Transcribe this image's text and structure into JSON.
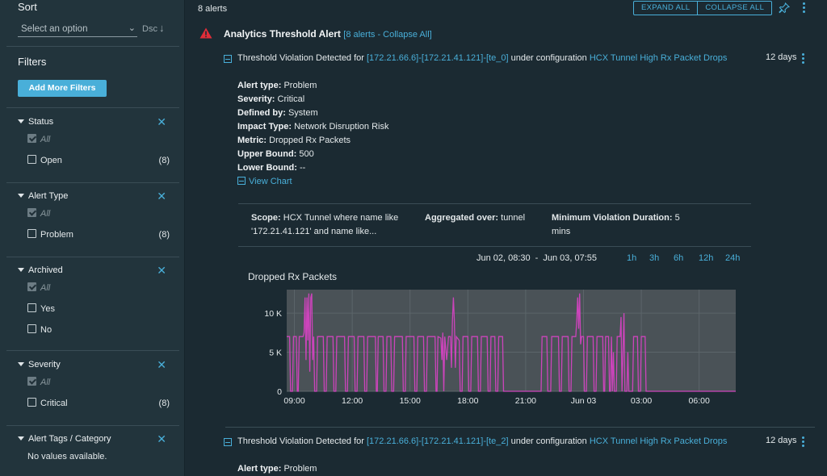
{
  "sidebar": {
    "sort": {
      "title": "Sort",
      "placeholder": "Select an option",
      "direction": "Dsc"
    },
    "filters_title": "Filters",
    "add_filters": "Add More Filters",
    "groups": [
      {
        "label": "Status",
        "options": [
          {
            "label": "All",
            "checked": true
          },
          {
            "label": "Open",
            "count": "(8)"
          }
        ]
      },
      {
        "label": "Alert Type",
        "options": [
          {
            "label": "All",
            "checked": true
          },
          {
            "label": "Problem",
            "count": "(8)"
          }
        ]
      },
      {
        "label": "Archived",
        "options": [
          {
            "label": "All",
            "checked": true
          },
          {
            "label": "Yes",
            "count": ""
          },
          {
            "label": "No",
            "count": ""
          }
        ]
      },
      {
        "label": "Severity",
        "options": [
          {
            "label": "All",
            "checked": true
          },
          {
            "label": "Critical",
            "count": "(8)"
          }
        ]
      },
      {
        "label": "Alert Tags / Category",
        "empty": "No values available."
      }
    ]
  },
  "main": {
    "alerts_count": "8 alerts",
    "expand_all": "EXPAND ALL",
    "collapse_all": "COLLAPSE ALL",
    "group_title": "Analytics Threshold Alert",
    "group_link": "[8 alerts - Collapse All]",
    "alert1": {
      "prefix": "Threshold Violation Detected for ",
      "entity": "[172.21.66.6]-[172.21.41.121]-[te_0]",
      "middle": " under configuration ",
      "config": "HCX Tunnel High Rx Packet Drops",
      "age": "12 days",
      "details": [
        {
          "k": "Alert type:",
          "v": " Problem"
        },
        {
          "k": "Severity:",
          "v": " Critical"
        },
        {
          "k": "Defined by:",
          "v": " System"
        },
        {
          "k": "Impact Type:",
          "v": " Network Disruption Risk"
        },
        {
          "k": "Metric:",
          "v": " Dropped Rx Packets"
        },
        {
          "k": "Upper Bound:",
          "v": " 500"
        },
        {
          "k": "Lower Bound:",
          "v": " --"
        }
      ],
      "view_chart": "View Chart",
      "scope_label": "Scope:",
      "scope_value": " HCX Tunnel where name like '172.21.41.121' and name like...",
      "agg_label": "Aggregated over:",
      "agg_value": " tunnel",
      "min_label": "Minimum Violation Duration:",
      "min_value": " 5 mins",
      "range_start": "Jun 02, 08:30",
      "range_sep": "-",
      "range_end": "Jun 03, 07:55",
      "ranges": [
        "1h",
        "3h",
        "6h",
        "12h",
        "24h"
      ]
    },
    "alert2": {
      "prefix": "Threshold Violation Detected for ",
      "entity": "[172.21.66.6]-[172.21.41.121]-[te_2]",
      "middle": " under configuration ",
      "config": "HCX Tunnel High Rx Packet Drops",
      "age": "12 days",
      "detail_k": "Alert type:",
      "detail_v": " Problem"
    }
  },
  "colors": {
    "accent": "#49afd9",
    "line": "#cc44bb",
    "alert": "#e12d39"
  },
  "chart_data": {
    "type": "line",
    "title": "Dropped Rx Packets",
    "x_unit": "hours since Jun 02 00:00",
    "xlim": [
      8.6,
      31.9
    ],
    "ylim": [
      0,
      13000
    ],
    "y_ticks": [
      {
        "v": 0,
        "label": "0"
      },
      {
        "v": 5000,
        "label": "5 K"
      },
      {
        "v": 10000,
        "label": "10 K"
      }
    ],
    "x_ticks": [
      {
        "v": 9,
        "label": "09:00"
      },
      {
        "v": 12,
        "label": "12:00"
      },
      {
        "v": 15,
        "label": "15:00"
      },
      {
        "v": 18,
        "label": "18:00"
      },
      {
        "v": 21,
        "label": "21:00"
      },
      {
        "v": 24,
        "label": "Jun 03"
      },
      {
        "v": 27,
        "label": "03:00"
      },
      {
        "v": 30,
        "label": "06:00"
      }
    ],
    "series": [
      {
        "name": "Dropped Rx Packets",
        "points": [
          [
            8.6,
            7000
          ],
          [
            8.75,
            7000
          ],
          [
            8.8,
            0
          ],
          [
            8.9,
            0
          ],
          [
            8.95,
            7000
          ],
          [
            9.1,
            7000
          ],
          [
            9.15,
            0
          ],
          [
            9.2,
            0
          ],
          [
            9.25,
            7000
          ],
          [
            9.45,
            7000
          ],
          [
            9.5,
            7500
          ],
          [
            9.55,
            12000
          ],
          [
            9.6,
            4000
          ],
          [
            9.65,
            12000
          ],
          [
            9.7,
            6500
          ],
          [
            9.75,
            12500
          ],
          [
            9.8,
            2500
          ],
          [
            9.85,
            12000
          ],
          [
            9.9,
            12500
          ],
          [
            9.95,
            4000
          ],
          [
            10.0,
            7000
          ],
          [
            10.05,
            0
          ],
          [
            10.15,
            0
          ],
          [
            10.2,
            7000
          ],
          [
            10.5,
            7000
          ],
          [
            10.55,
            0
          ],
          [
            10.65,
            0
          ],
          [
            10.7,
            7000
          ],
          [
            11.0,
            7000
          ],
          [
            11.05,
            0
          ],
          [
            11.15,
            0
          ],
          [
            11.2,
            7000
          ],
          [
            11.6,
            7000
          ],
          [
            11.65,
            0
          ],
          [
            11.75,
            0
          ],
          [
            11.8,
            7000
          ],
          [
            12.1,
            7000
          ],
          [
            12.15,
            0
          ],
          [
            12.25,
            0
          ],
          [
            12.3,
            7000
          ],
          [
            12.6,
            7000
          ],
          [
            12.65,
            0
          ],
          [
            12.75,
            0
          ],
          [
            12.8,
            7000
          ],
          [
            13.2,
            7000
          ],
          [
            13.25,
            0
          ],
          [
            13.3,
            0
          ],
          [
            13.35,
            7000
          ],
          [
            13.6,
            7000
          ],
          [
            13.65,
            0
          ],
          [
            13.75,
            0
          ],
          [
            13.8,
            7000
          ],
          [
            14.0,
            7000
          ],
          [
            14.05,
            0
          ],
          [
            14.15,
            0
          ],
          [
            14.2,
            7000
          ],
          [
            14.6,
            7000
          ],
          [
            14.65,
            0
          ],
          [
            14.75,
            0
          ],
          [
            14.8,
            7000
          ],
          [
            15.2,
            7000
          ],
          [
            15.25,
            0
          ],
          [
            15.35,
            0
          ],
          [
            15.4,
            7000
          ],
          [
            15.7,
            7000
          ],
          [
            15.75,
            0
          ],
          [
            15.85,
            0
          ],
          [
            15.9,
            7000
          ],
          [
            16.3,
            7000
          ],
          [
            16.35,
            0
          ],
          [
            16.4,
            0
          ],
          [
            16.45,
            7000
          ],
          [
            16.6,
            6800
          ],
          [
            16.65,
            4000
          ],
          [
            16.7,
            7500
          ],
          [
            16.75,
            0
          ],
          [
            16.8,
            7000
          ],
          [
            16.9,
            4000
          ],
          [
            17.0,
            7000
          ],
          [
            17.1,
            7000
          ],
          [
            17.15,
            3000
          ],
          [
            17.2,
            9000
          ],
          [
            17.25,
            12000
          ],
          [
            17.3,
            9000
          ],
          [
            17.35,
            3000
          ],
          [
            17.4,
            7000
          ],
          [
            17.55,
            6500
          ],
          [
            17.6,
            0
          ],
          [
            17.7,
            0
          ],
          [
            17.75,
            7000
          ],
          [
            18.0,
            7000
          ],
          [
            18.05,
            0
          ],
          [
            18.15,
            0
          ],
          [
            18.2,
            7000
          ],
          [
            18.5,
            7000
          ],
          [
            18.55,
            0
          ],
          [
            18.65,
            0
          ],
          [
            18.7,
            7000
          ],
          [
            19.0,
            7000
          ],
          [
            19.05,
            0
          ],
          [
            19.15,
            0
          ],
          [
            19.2,
            7000
          ],
          [
            19.4,
            7000
          ],
          [
            19.45,
            0
          ],
          [
            19.55,
            0
          ],
          [
            19.6,
            7000
          ],
          [
            19.8,
            7000
          ],
          [
            19.85,
            0
          ],
          [
            21.8,
            0
          ],
          [
            21.85,
            7000
          ],
          [
            22.1,
            7000
          ],
          [
            22.15,
            0
          ],
          [
            22.3,
            0
          ],
          [
            22.35,
            7000
          ],
          [
            22.7,
            7000
          ],
          [
            22.75,
            0
          ],
          [
            22.85,
            0
          ],
          [
            22.9,
            7000
          ],
          [
            23.2,
            7000
          ],
          [
            23.25,
            0
          ],
          [
            23.35,
            0
          ],
          [
            23.4,
            7000
          ],
          [
            23.6,
            7000
          ],
          [
            23.65,
            9000
          ],
          [
            23.7,
            12000
          ],
          [
            23.75,
            8000
          ],
          [
            23.8,
            12500
          ],
          [
            23.85,
            6000
          ],
          [
            23.9,
            7000
          ],
          [
            24.0,
            7000
          ],
          [
            24.05,
            0
          ],
          [
            24.15,
            0
          ],
          [
            24.2,
            7000
          ],
          [
            24.5,
            7000
          ],
          [
            24.55,
            0
          ],
          [
            24.65,
            0
          ],
          [
            24.7,
            7000
          ],
          [
            25.0,
            7000
          ],
          [
            25.05,
            0
          ],
          [
            25.1,
            0
          ],
          [
            25.15,
            7000
          ],
          [
            25.3,
            7000
          ],
          [
            25.35,
            0
          ],
          [
            25.4,
            0
          ],
          [
            25.45,
            7000
          ],
          [
            25.5,
            0
          ],
          [
            25.55,
            5000
          ],
          [
            25.6,
            0
          ],
          [
            25.7,
            0
          ],
          [
            25.75,
            7000
          ],
          [
            25.9,
            7000
          ],
          [
            25.95,
            9500
          ],
          [
            26.0,
            0
          ],
          [
            26.1,
            10000
          ],
          [
            26.15,
            0
          ],
          [
            26.25,
            0
          ],
          [
            26.3,
            5000
          ],
          [
            26.35,
            0
          ],
          [
            26.55,
            0
          ],
          [
            26.6,
            7000
          ],
          [
            26.8,
            7000
          ],
          [
            26.85,
            0
          ],
          [
            26.95,
            0
          ],
          [
            27.0,
            7000
          ],
          [
            27.2,
            7000
          ],
          [
            27.25,
            0
          ],
          [
            31.9,
            0
          ]
        ]
      }
    ]
  }
}
